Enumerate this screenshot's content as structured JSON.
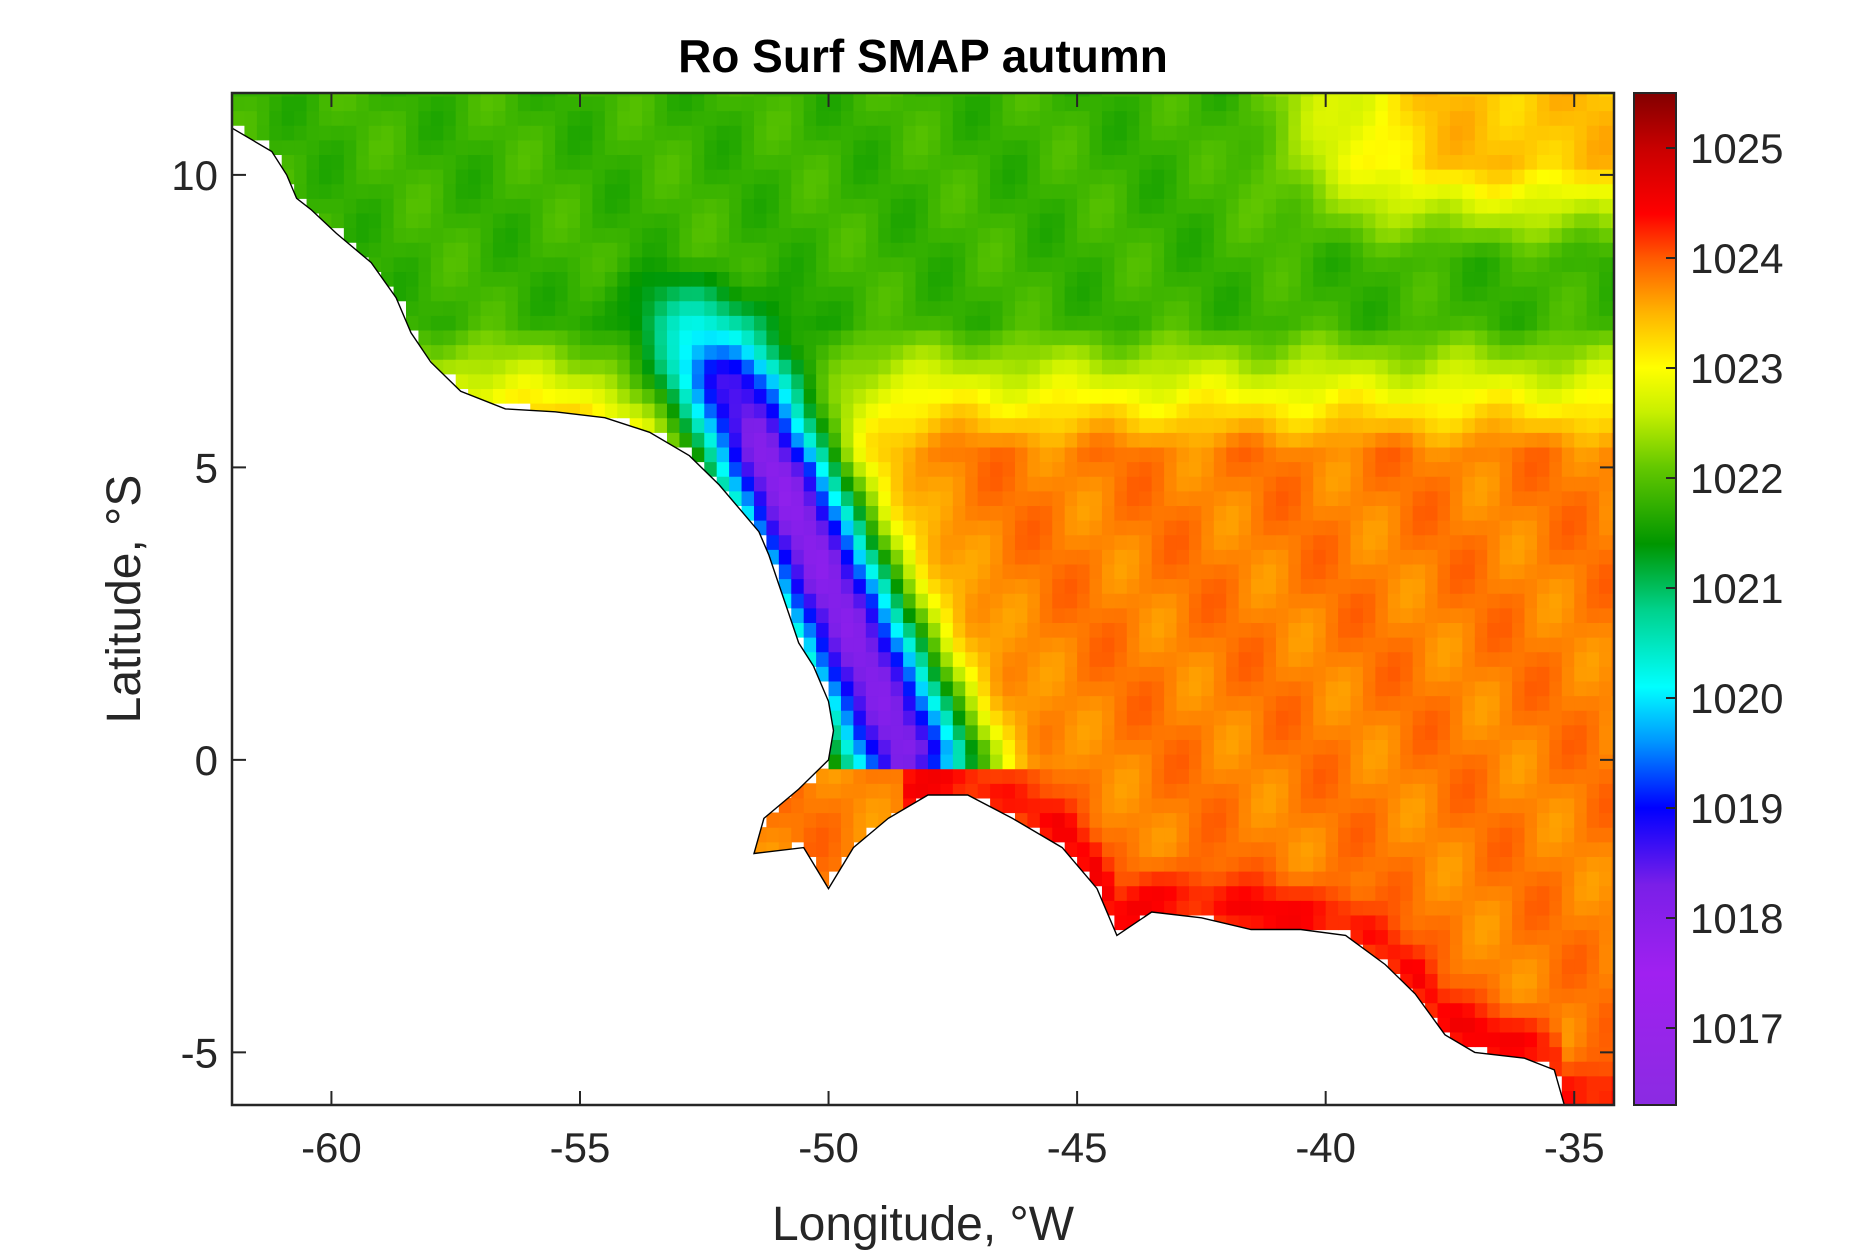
{
  "chart_data": {
    "type": "heatmap",
    "title": "Ro Surf SMAP autumn",
    "xlabel": "Longitude, °W",
    "ylabel": "Latitude, °S",
    "xlim": [
      -62,
      -34.2
    ],
    "ylim": [
      -5.9,
      11.4
    ],
    "xticks": [
      -60,
      -55,
      -50,
      -45,
      -40,
      -35
    ],
    "yticks": [
      -5,
      0,
      5,
      10
    ],
    "colorbar": {
      "limits": [
        1016.3,
        1025.5
      ],
      "ticks": [
        1017,
        1018,
        1019,
        1020,
        1021,
        1022,
        1023,
        1024,
        1025
      ],
      "colormap": [
        {
          "value": 1016.3,
          "color": "#8b2be2"
        },
        {
          "value": 1017.5,
          "color": "#a020f0"
        },
        {
          "value": 1018.3,
          "color": "#7a1fe8"
        },
        {
          "value": 1019.0,
          "color": "#0000ff"
        },
        {
          "value": 1019.6,
          "color": "#0096ff"
        },
        {
          "value": 1020.1,
          "color": "#00ffff"
        },
        {
          "value": 1020.8,
          "color": "#00d28c"
        },
        {
          "value": 1021.4,
          "color": "#009600"
        },
        {
          "value": 1022.1,
          "color": "#64c800"
        },
        {
          "value": 1022.6,
          "color": "#c8f000"
        },
        {
          "value": 1023.0,
          "color": "#ffff00"
        },
        {
          "value": 1023.5,
          "color": "#ffb400"
        },
        {
          "value": 1024.0,
          "color": "#ff5a00"
        },
        {
          "value": 1024.4,
          "color": "#ff0000"
        },
        {
          "value": 1025.0,
          "color": "#c80000"
        },
        {
          "value": 1025.5,
          "color": "#820000"
        }
      ]
    },
    "field_features": {
      "offshore_background": 1023.8,
      "northern_band": {
        "lat_range": [
          7,
          11.4
        ],
        "value": 1021.8
      },
      "amazon_plume": {
        "lon_range": [
          -52.5,
          -48.5
        ],
        "lat_range": [
          0,
          7
        ],
        "min_value": 1018.0
      },
      "northeast_corner": {
        "lon_range": [
          -42,
          -34.2
        ],
        "lat_range": [
          9,
          11.4
        ],
        "value": 1023.4
      }
    },
    "grid": false,
    "colorbar_position": "right"
  }
}
